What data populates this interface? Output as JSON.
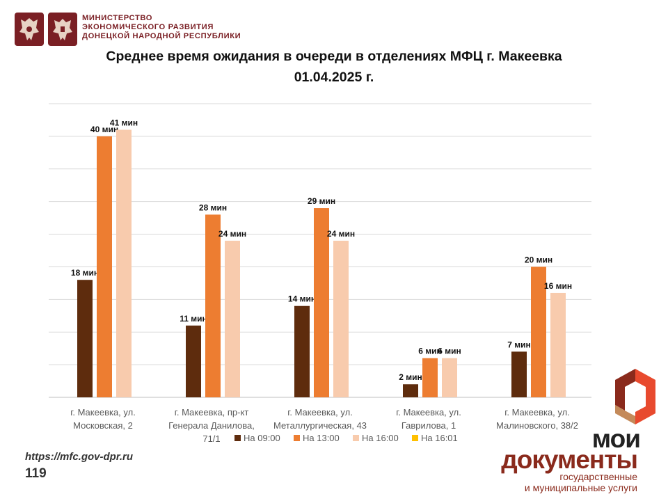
{
  "header": {
    "ministry_line1": "МИНИСТЕРСТВО",
    "ministry_line2": "ЭКОНОМИЧЕСКОГО РАЗВИТИЯ",
    "ministry_line3": "ДОНЕЦКОЙ НАРОДНОЙ РЕСПУБЛИКИ"
  },
  "title_line1": "Среднее время ожидания в очереди в отделениях МФЦ г. Макеевка",
  "title_line2": "01.04.2025 г.",
  "footer": {
    "url": "https://mfc.gov-dpr.ru",
    "page_number": "119"
  },
  "logo": {
    "line1": "мои",
    "line2": "документы",
    "line3": "государственные",
    "line4": "и муниципальные услуги"
  },
  "colors": {
    "s0900": "#5e2c0d",
    "s1300": "#ed7d31",
    "s1600": "#f8cbad",
    "s1601": "#ffc000",
    "grid": "#d9d9d9",
    "brand": "#7a1f24"
  },
  "chart_data": {
    "type": "bar",
    "categories": [
      [
        "г. Макеевка, ул.",
        "Московская, 2"
      ],
      [
        "г. Макеевка, пр-кт",
        "Генерала Данилова,",
        "71/1"
      ],
      [
        "г. Макеевка, ул.",
        "Металлургическая, 43"
      ],
      [
        "г. Макеевка, ул.",
        "Гаврилова, 1"
      ],
      [
        "г. Макеевка, ул.",
        "Малиновского, 38/2"
      ]
    ],
    "series": [
      {
        "name": "На 09:00",
        "color": "#5e2c0d",
        "values": [
          18,
          11,
          14,
          2,
          7
        ]
      },
      {
        "name": "На 13:00",
        "color": "#ed7d31",
        "values": [
          40,
          28,
          29,
          6,
          20
        ]
      },
      {
        "name": "На 16:00",
        "color": "#f8cbad",
        "values": [
          41,
          24,
          24,
          6,
          16
        ]
      },
      {
        "name": "На 16:01",
        "color": "#ffc000",
        "values": [
          0,
          0,
          0,
          0,
          0
        ]
      }
    ],
    "value_suffix": " мин",
    "ylim": [
      0,
      45
    ],
    "grid": true,
    "legend": "bottom"
  }
}
